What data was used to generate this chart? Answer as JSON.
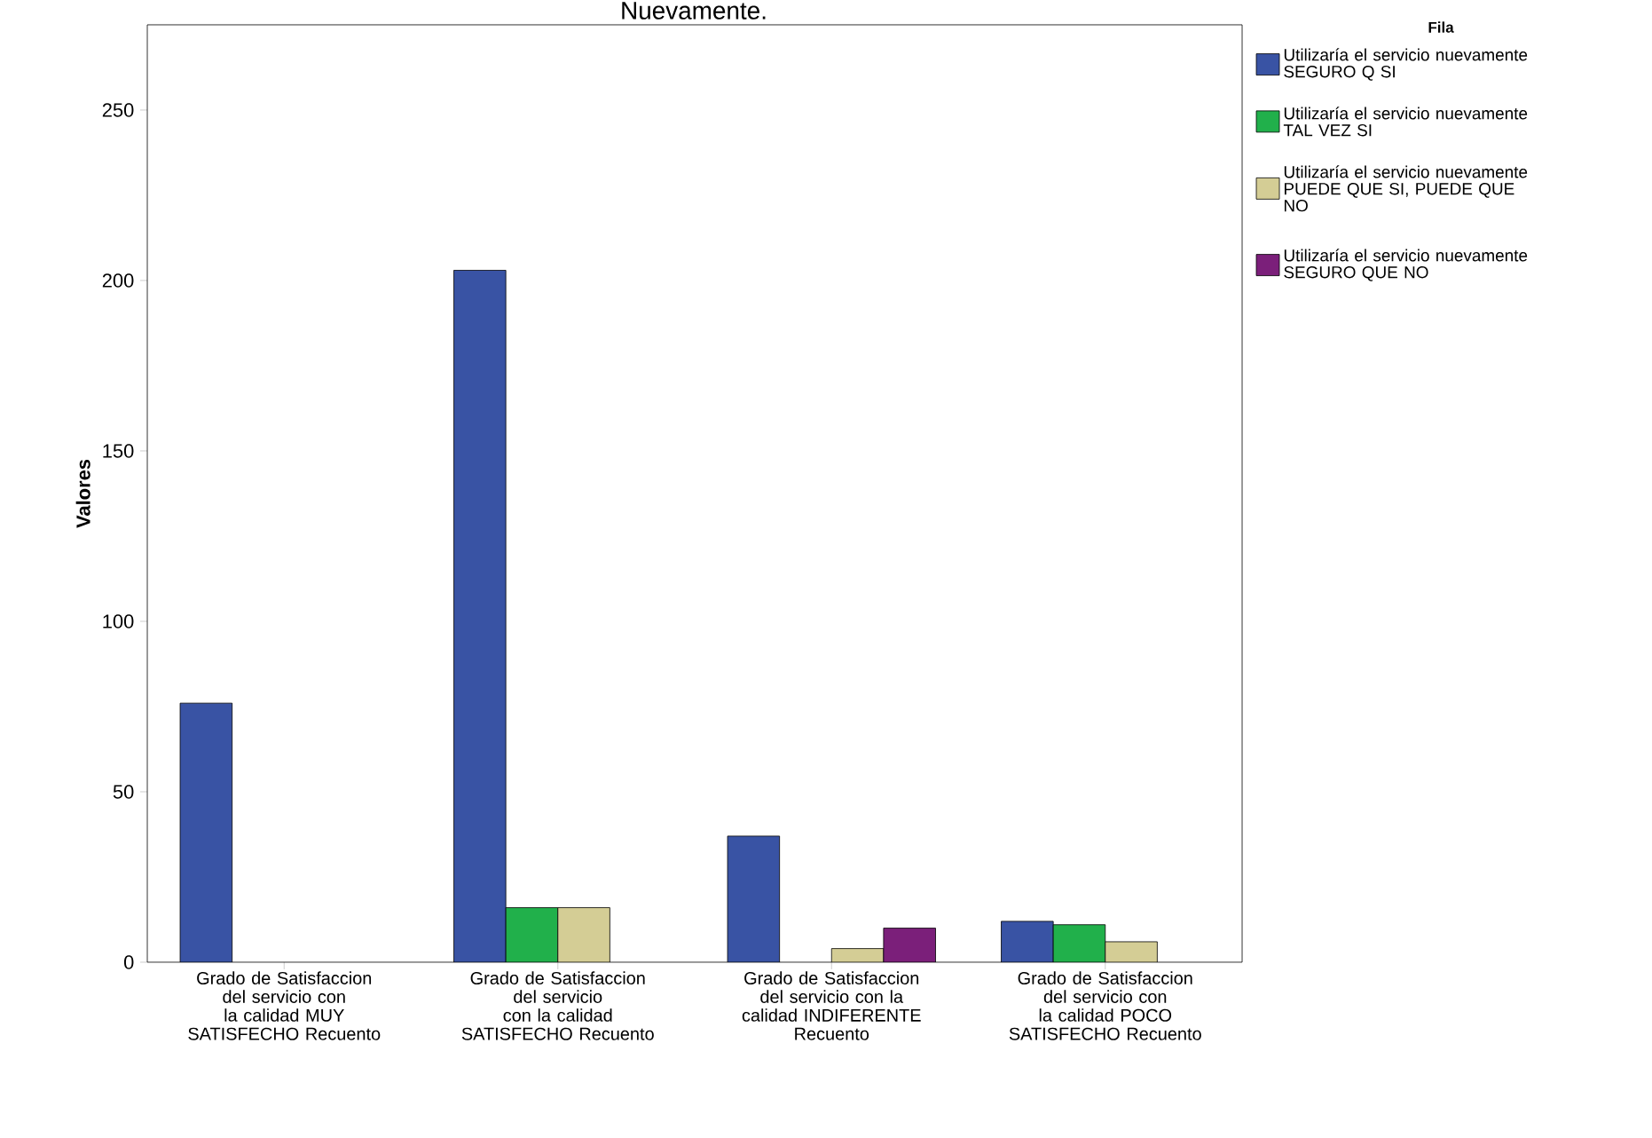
{
  "chart_data": {
    "type": "bar",
    "title": "Nuevamente.",
    "ylabel": "Valores",
    "legend_title": "Fila",
    "legend": "right",
    "grid": false,
    "categories": [
      "Grado de Satisfaccion del servicio con la calidad MUY SATISFECHO Recuento",
      "Grado de Satisfaccion del servicio con la calidad SATISFECHO Recuento",
      "Grado de Satisfaccion del servicio con la calidad INDIFERENTE Recuento",
      "Grado de Satisfaccion del servicio con la calidad POCO SATISFECHO Recuento"
    ],
    "series": [
      {
        "name": "Utilizaría el servicio nuevamente SEGURO Q SI",
        "color": "#3953a4",
        "values": [
          76,
          203,
          37,
          12
        ]
      },
      {
        "name": "Utilizaría el servicio nuevamente TAL VEZ SI",
        "color": "#21b04b",
        "values": [
          null,
          16,
          null,
          11
        ]
      },
      {
        "name": "Utilizaría el servicio nuevamente PUEDE QUE SI, PUEDE QUE NO",
        "color": "#d4cd95",
        "values": [
          null,
          16,
          4,
          6
        ]
      },
      {
        "name": "Utilizaría el servicio nuevamente SEGURO QUE NO",
        "color": "#7b1f7a",
        "values": [
          null,
          null,
          10,
          null
        ]
      }
    ],
    "ylim": [
      0,
      275
    ],
    "yticks": [
      0,
      50,
      100,
      150,
      200,
      250
    ]
  }
}
